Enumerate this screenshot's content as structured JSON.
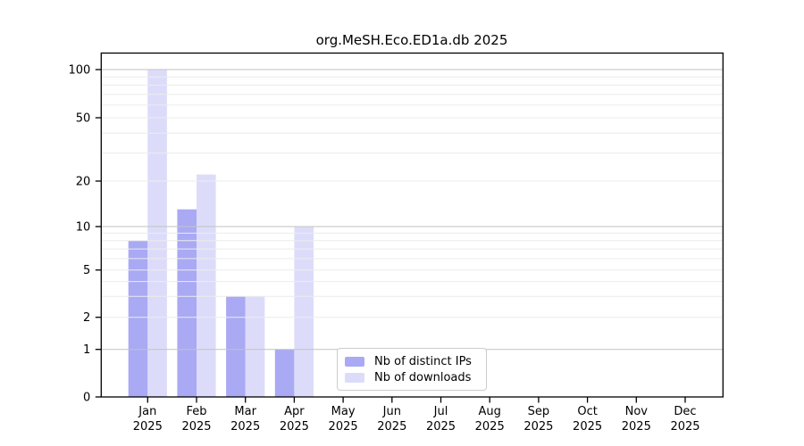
{
  "chart_data": {
    "type": "bar",
    "title": "org.MeSH.Eco.ED1a.db 2025",
    "categories": [
      "Jan 2025",
      "Feb 2025",
      "Mar 2025",
      "Apr 2025",
      "May 2025",
      "Jun 2025",
      "Jul 2025",
      "Aug 2025",
      "Sep 2025",
      "Oct 2025",
      "Nov 2025",
      "Dec 2025"
    ],
    "category_months": [
      "Jan",
      "Feb",
      "Mar",
      "Apr",
      "May",
      "Jun",
      "Jul",
      "Aug",
      "Sep",
      "Oct",
      "Nov",
      "Dec"
    ],
    "category_year": "2025",
    "series": [
      {
        "name": "Nb of distinct IPs",
        "color": "#a9a9f4",
        "values": [
          8,
          13,
          3,
          1,
          0,
          0,
          0,
          0,
          0,
          0,
          0,
          0
        ]
      },
      {
        "name": "Nb of downloads",
        "color": "#dcdcfa",
        "values": [
          100,
          22,
          3,
          10,
          0,
          0,
          0,
          0,
          0,
          0,
          0,
          0
        ]
      }
    ],
    "xlabel": "",
    "ylabel": "",
    "yscale": "log-with-zero",
    "yticks": [
      0,
      1,
      2,
      5,
      10,
      20,
      50,
      100
    ],
    "ylim": [
      0,
      125
    ],
    "grid": true,
    "grid_major_color": "#c2c2c2",
    "grid_minor_color": "#ececec",
    "axis_color": "#000000",
    "legend_position": "lower center"
  }
}
